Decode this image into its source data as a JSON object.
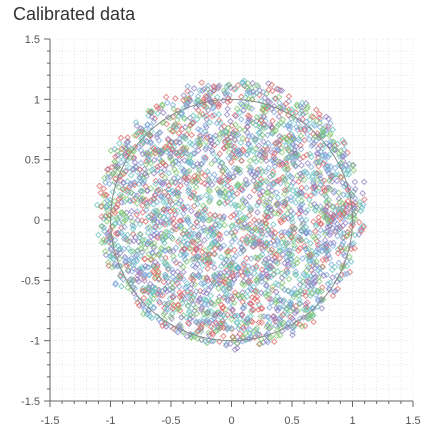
{
  "chart_data": {
    "type": "scatter",
    "title": "Calibrated data",
    "xlabel": "",
    "ylabel": "",
    "xlim": [
      -1.5,
      1.5
    ],
    "ylim": [
      -1.5,
      1.5
    ],
    "grid": true,
    "x_ticks": [
      "-1.5",
      "-1",
      "-0.5",
      "0",
      "0.5",
      "1",
      "1.5"
    ],
    "y_ticks": [
      "1.5",
      "1",
      "0.5",
      "0",
      "-0.5",
      "-1",
      "-1.5"
    ],
    "point_cloud": {
      "shape": "disk",
      "center": [
        0.0,
        0.05
      ],
      "radius": 1.1,
      "marker": "diamond",
      "approx_points_per_series": 600
    },
    "reference_circle": {
      "center": [
        0,
        0
      ],
      "radius": 1.0,
      "color": "#888888"
    },
    "series": [
      {
        "color": "#7aa6da"
      },
      {
        "color": "#e06666"
      },
      {
        "color": "#7dc56e"
      },
      {
        "color": "#8e7cc3"
      },
      {
        "color": "#66c2c2"
      }
    ]
  }
}
